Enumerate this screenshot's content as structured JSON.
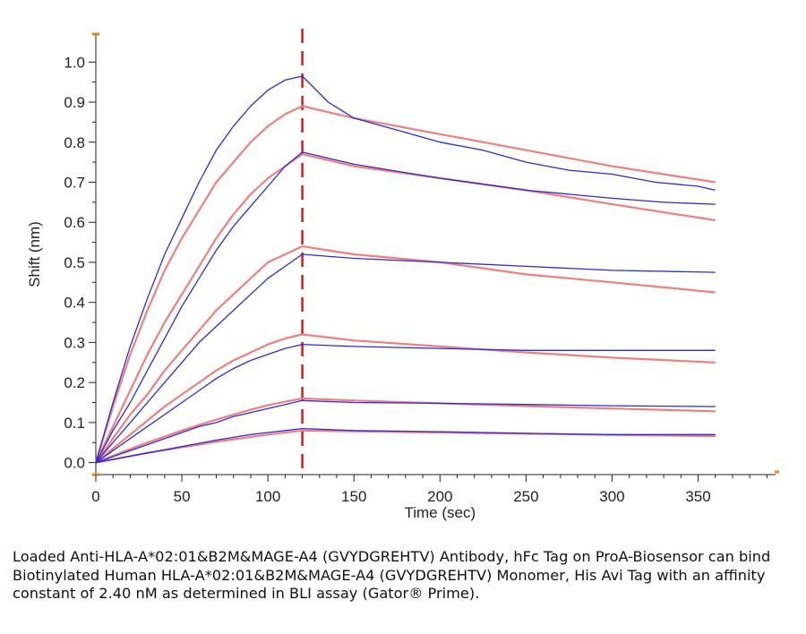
{
  "chart_data": {
    "type": "line",
    "title": "",
    "xlabel": "Time (sec)",
    "ylabel": "Shift (nm)",
    "xlim": [
      0,
      395
    ],
    "ylim": [
      -0.03,
      1.07
    ],
    "xticks": [
      0,
      50,
      100,
      150,
      200,
      250,
      300,
      350
    ],
    "yticks": [
      0.0,
      0.1,
      0.2,
      0.3,
      0.4,
      0.5,
      0.6,
      0.7,
      0.8,
      0.9,
      1.0
    ],
    "ytick_labels": [
      "0.0",
      "0.1",
      "0.2",
      "0.3",
      "0.4",
      "0.5",
      "0.6",
      "0.7",
      "0.8",
      "0.9",
      "1.0"
    ],
    "association_end": 120,
    "grid": false,
    "legend": "none",
    "colors": {
      "measured": "#2b2bd6",
      "fit": "#ef7f7f",
      "marker": "#cc1f1f",
      "axis_accent": "#e08a1e"
    },
    "series": [
      {
        "kind": "measured",
        "x": [
          0,
          10,
          20,
          30,
          40,
          50,
          60,
          70,
          80,
          90,
          100,
          110,
          120,
          135,
          150,
          175,
          200,
          225,
          250,
          275,
          300,
          325,
          350,
          360
        ],
        "values": [
          0.0,
          0.15,
          0.29,
          0.41,
          0.52,
          0.61,
          0.7,
          0.78,
          0.84,
          0.89,
          0.93,
          0.955,
          0.965,
          0.9,
          0.86,
          0.83,
          0.8,
          0.78,
          0.75,
          0.73,
          0.72,
          0.7,
          0.69,
          0.68
        ]
      },
      {
        "kind": "fit",
        "x": [
          0,
          10,
          20,
          30,
          40,
          50,
          60,
          70,
          80,
          90,
          100,
          110,
          120,
          150,
          200,
          250,
          300,
          360
        ],
        "values": [
          0.0,
          0.14,
          0.27,
          0.38,
          0.48,
          0.56,
          0.63,
          0.7,
          0.75,
          0.8,
          0.84,
          0.87,
          0.89,
          0.86,
          0.82,
          0.78,
          0.74,
          0.7
        ]
      },
      {
        "kind": "measured",
        "x": [
          0,
          10,
          20,
          30,
          40,
          50,
          60,
          70,
          80,
          90,
          100,
          110,
          120,
          150,
          200,
          250,
          300,
          330,
          360
        ],
        "values": [
          0.0,
          0.08,
          0.15,
          0.23,
          0.31,
          0.39,
          0.46,
          0.53,
          0.59,
          0.64,
          0.69,
          0.74,
          0.775,
          0.745,
          0.71,
          0.68,
          0.66,
          0.65,
          0.645
        ]
      },
      {
        "kind": "fit",
        "x": [
          0,
          10,
          20,
          30,
          40,
          50,
          60,
          70,
          80,
          90,
          100,
          110,
          120,
          150,
          200,
          250,
          300,
          360
        ],
        "values": [
          0.0,
          0.09,
          0.18,
          0.27,
          0.35,
          0.42,
          0.49,
          0.56,
          0.62,
          0.67,
          0.71,
          0.74,
          0.77,
          0.74,
          0.71,
          0.68,
          0.645,
          0.605
        ]
      },
      {
        "kind": "measured",
        "x": [
          0,
          10,
          20,
          30,
          40,
          50,
          60,
          70,
          80,
          90,
          100,
          110,
          120,
          150,
          200,
          250,
          300,
          360
        ],
        "values": [
          0.0,
          0.05,
          0.1,
          0.15,
          0.2,
          0.25,
          0.3,
          0.34,
          0.38,
          0.42,
          0.46,
          0.49,
          0.52,
          0.51,
          0.5,
          0.49,
          0.48,
          0.475
        ]
      },
      {
        "kind": "fit",
        "x": [
          0,
          10,
          20,
          30,
          40,
          50,
          60,
          70,
          80,
          90,
          100,
          110,
          120,
          150,
          200,
          250,
          300,
          360
        ],
        "values": [
          0.0,
          0.06,
          0.12,
          0.17,
          0.23,
          0.28,
          0.33,
          0.38,
          0.42,
          0.46,
          0.5,
          0.52,
          0.54,
          0.52,
          0.5,
          0.47,
          0.45,
          0.425
        ]
      },
      {
        "kind": "measured",
        "x": [
          0,
          10,
          20,
          30,
          40,
          50,
          60,
          70,
          80,
          90,
          100,
          110,
          120,
          150,
          200,
          250,
          300,
          360
        ],
        "values": [
          0.0,
          0.03,
          0.06,
          0.09,
          0.12,
          0.15,
          0.18,
          0.21,
          0.235,
          0.255,
          0.27,
          0.285,
          0.295,
          0.29,
          0.285,
          0.28,
          0.28,
          0.28
        ]
      },
      {
        "kind": "fit",
        "x": [
          0,
          10,
          20,
          30,
          40,
          50,
          60,
          70,
          80,
          90,
          100,
          110,
          120,
          150,
          200,
          250,
          300,
          360
        ],
        "values": [
          0.0,
          0.035,
          0.07,
          0.105,
          0.14,
          0.17,
          0.2,
          0.23,
          0.255,
          0.275,
          0.295,
          0.31,
          0.32,
          0.305,
          0.29,
          0.275,
          0.262,
          0.25
        ]
      },
      {
        "kind": "measured",
        "x": [
          0,
          10,
          20,
          30,
          40,
          50,
          60,
          70,
          80,
          90,
          100,
          110,
          120,
          150,
          200,
          250,
          300,
          360
        ],
        "values": [
          0.0,
          0.015,
          0.03,
          0.045,
          0.06,
          0.075,
          0.09,
          0.1,
          0.115,
          0.125,
          0.135,
          0.145,
          0.155,
          0.15,
          0.148,
          0.145,
          0.142,
          0.14
        ]
      },
      {
        "kind": "fit",
        "x": [
          0,
          10,
          20,
          30,
          40,
          50,
          60,
          70,
          80,
          90,
          100,
          110,
          120,
          150,
          200,
          250,
          300,
          360
        ],
        "values": [
          0.0,
          0.017,
          0.034,
          0.05,
          0.065,
          0.08,
          0.094,
          0.107,
          0.12,
          0.132,
          0.143,
          0.152,
          0.16,
          0.155,
          0.148,
          0.141,
          0.135,
          0.128
        ]
      },
      {
        "kind": "measured",
        "x": [
          0,
          10,
          20,
          30,
          40,
          50,
          60,
          70,
          80,
          90,
          100,
          110,
          120,
          150,
          200,
          250,
          300,
          360
        ],
        "values": [
          0.0,
          0.008,
          0.016,
          0.024,
          0.032,
          0.04,
          0.048,
          0.056,
          0.063,
          0.07,
          0.075,
          0.08,
          0.085,
          0.08,
          0.077,
          0.073,
          0.07,
          0.07
        ]
      },
      {
        "kind": "fit",
        "x": [
          0,
          10,
          20,
          30,
          40,
          50,
          60,
          70,
          80,
          90,
          100,
          110,
          120,
          150,
          200,
          250,
          300,
          360
        ],
        "values": [
          0.0,
          0.008,
          0.016,
          0.024,
          0.031,
          0.038,
          0.045,
          0.052,
          0.058,
          0.064,
          0.07,
          0.075,
          0.08,
          0.078,
          0.075,
          0.072,
          0.069,
          0.066
        ]
      }
    ]
  },
  "caption": "Loaded Anti-HLA-A*02:01&B2M&MAGE-A4 (GVYDGREHTV) Antibody, hFc Tag on ProA-Biosensor can bind Biotinylated Human HLA-A*02:01&B2M&MAGE-A4 (GVYDGREHTV) Monomer, His Avi Tag with an affinity constant of 2.40 nM as determined in BLI assay (Gator® Prime)."
}
